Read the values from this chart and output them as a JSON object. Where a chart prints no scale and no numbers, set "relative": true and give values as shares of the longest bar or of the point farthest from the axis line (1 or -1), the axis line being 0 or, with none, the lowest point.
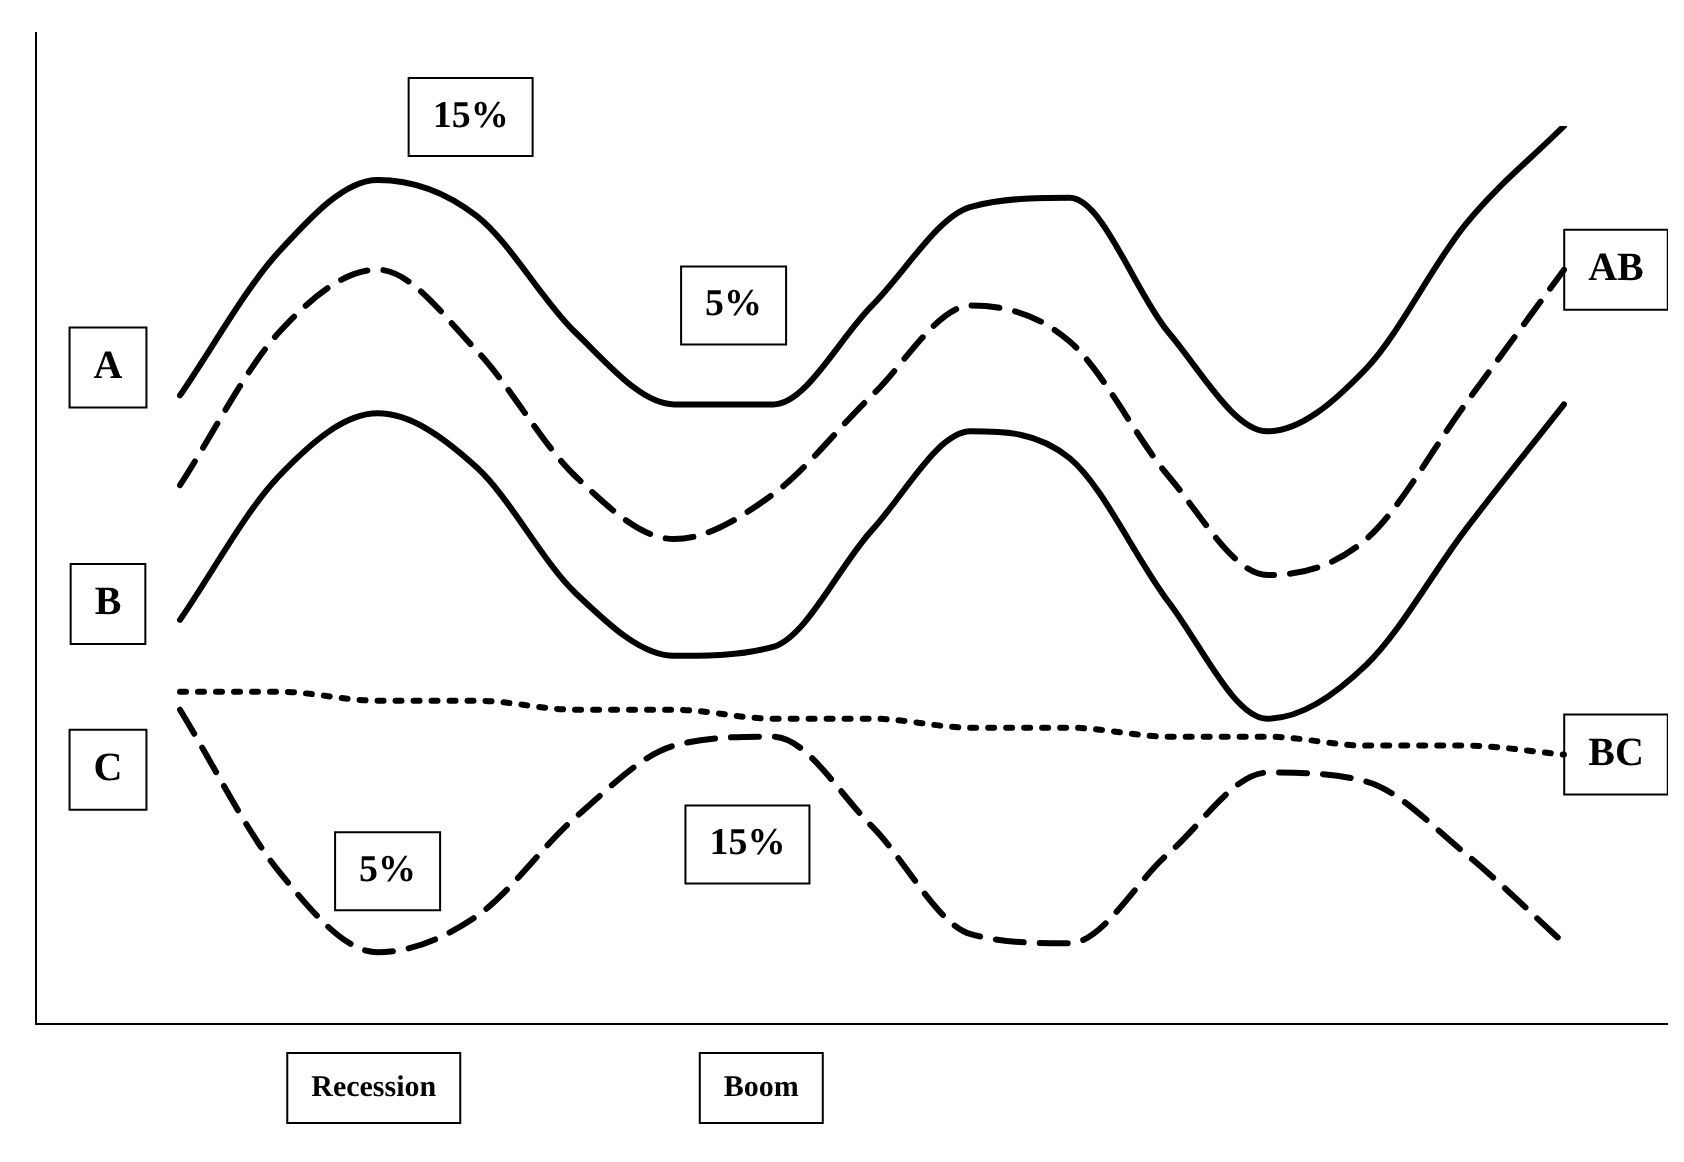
{
  "chart_data": {
    "type": "line",
    "relative": true,
    "categories": [
      null,
      null,
      null,
      null,
      null,
      null,
      null,
      null,
      null,
      null,
      null,
      null,
      null,
      null,
      null
    ],
    "series": [
      {
        "name": "A",
        "color": "#000000",
        "line_style": "solid",
        "values": [
          0.7,
          0.86,
          0.94,
          0.9,
          0.77,
          0.69,
          0.69,
          0.8,
          0.91,
          0.92,
          0.77,
          0.66,
          0.73,
          0.89,
          1
        ]
      },
      {
        "name": "AB",
        "color": "#000000",
        "line_style": "dashed",
        "values": [
          0.6,
          0.77,
          0.84,
          0.75,
          0.61,
          0.54,
          0.59,
          0.7,
          0.8,
          0.76,
          0.61,
          0.5,
          0.54,
          0.69,
          0.84
        ]
      },
      {
        "name": "B",
        "color": "#000000",
        "line_style": "solid",
        "values": [
          0.45,
          0.61,
          0.68,
          0.62,
          0.48,
          0.41,
          0.42,
          0.55,
          0.66,
          0.63,
          0.47,
          0.34,
          0.4,
          0.55,
          0.69
        ]
      },
      {
        "name": "BC",
        "color": "#000000",
        "line_style": "dotted",
        "values": [
          0.37,
          0.37,
          0.36,
          0.36,
          0.35,
          0.35,
          0.34,
          0.34,
          0.33,
          0.33,
          0.32,
          0.32,
          0.31,
          0.31,
          0.3
        ]
      },
      {
        "name": "C",
        "color": "#000000",
        "line_style": "dashed",
        "values": [
          0.35,
          0.17,
          0.08,
          0.12,
          0.23,
          0.31,
          0.32,
          0.22,
          0.1,
          0.09,
          0.19,
          0.28,
          0.27,
          0.19,
          0.09
        ]
      }
    ],
    "annotations": [
      "15%",
      "5%",
      "5%",
      "15%",
      "Recession",
      "Boom"
    ],
    "marker": "none",
    "legend": false
  }
}
